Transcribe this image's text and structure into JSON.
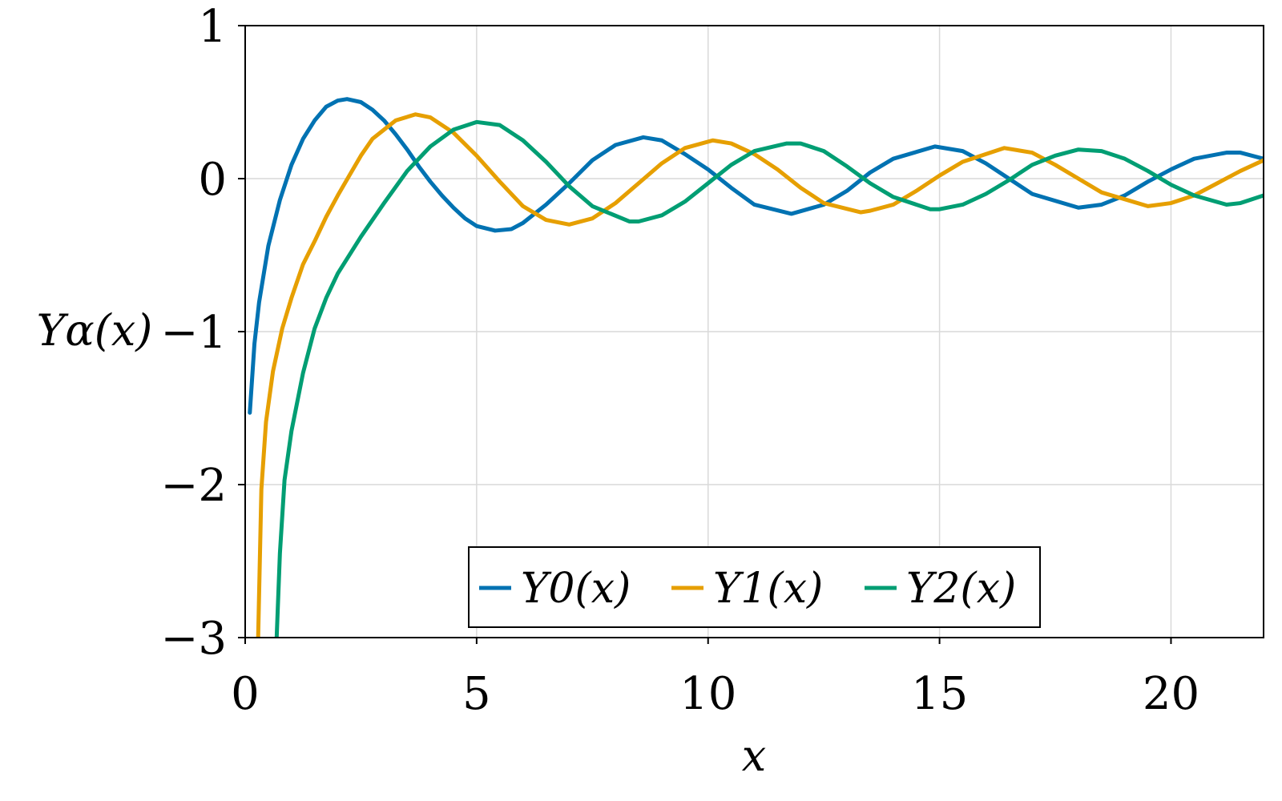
{
  "chart_data": {
    "type": "line",
    "title": "",
    "xlabel": "x",
    "ylabel": "Yα(x)",
    "xlim": [
      0,
      22
    ],
    "ylim": [
      -3,
      1
    ],
    "x_ticks": [
      0,
      5,
      10,
      15,
      20
    ],
    "y_ticks": [
      1,
      0,
      -1,
      -2,
      -3
    ],
    "x_tick_labels": [
      "0",
      "5",
      "10",
      "15",
      "20"
    ],
    "y_tick_labels": [
      "1",
      "0",
      "−1",
      "−2",
      "−3"
    ],
    "grid": true,
    "legend_position": "bottom-center",
    "series": [
      {
        "name": "Y0(x)",
        "color": "#0072B2",
        "points": [
          [
            0.1,
            -1.53
          ],
          [
            0.2,
            -1.08
          ],
          [
            0.3,
            -0.81
          ],
          [
            0.5,
            -0.44
          ],
          [
            0.75,
            -0.14
          ],
          [
            1.0,
            0.09
          ],
          [
            1.25,
            0.26
          ],
          [
            1.5,
            0.38
          ],
          [
            1.75,
            0.47
          ],
          [
            2.0,
            0.51
          ],
          [
            2.2,
            0.52
          ],
          [
            2.5,
            0.5
          ],
          [
            2.75,
            0.45
          ],
          [
            3.0,
            0.38
          ],
          [
            3.25,
            0.29
          ],
          [
            3.5,
            0.19
          ],
          [
            3.75,
            0.08
          ],
          [
            4.0,
            -0.02
          ],
          [
            4.25,
            -0.11
          ],
          [
            4.5,
            -0.19
          ],
          [
            4.75,
            -0.26
          ],
          [
            5.0,
            -0.31
          ],
          [
            5.4,
            -0.34
          ],
          [
            5.75,
            -0.33
          ],
          [
            6.0,
            -0.29
          ],
          [
            6.5,
            -0.17
          ],
          [
            7.0,
            -0.03
          ],
          [
            7.5,
            0.12
          ],
          [
            8.0,
            0.22
          ],
          [
            8.6,
            0.27
          ],
          [
            9.0,
            0.25
          ],
          [
            9.5,
            0.16
          ],
          [
            10.0,
            0.06
          ],
          [
            10.5,
            -0.06
          ],
          [
            11.0,
            -0.17
          ],
          [
            11.8,
            -0.23
          ],
          [
            12.5,
            -0.17
          ],
          [
            13.0,
            -0.08
          ],
          [
            13.5,
            0.04
          ],
          [
            14.0,
            0.13
          ],
          [
            14.9,
            0.21
          ],
          [
            15.5,
            0.18
          ],
          [
            16.0,
            0.1
          ],
          [
            16.5,
            0.0
          ],
          [
            17.0,
            -0.1
          ],
          [
            18.0,
            -0.19
          ],
          [
            18.5,
            -0.17
          ],
          [
            19.0,
            -0.11
          ],
          [
            19.5,
            -0.02
          ],
          [
            20.0,
            0.06
          ],
          [
            20.5,
            0.13
          ],
          [
            21.2,
            0.17
          ],
          [
            21.5,
            0.17
          ],
          [
            22.0,
            0.13
          ]
        ]
      },
      {
        "name": "Y1(x)",
        "color": "#E69F00",
        "points": [
          [
            0.28,
            -3.0
          ],
          [
            0.35,
            -2.03
          ],
          [
            0.45,
            -1.59
          ],
          [
            0.6,
            -1.26
          ],
          [
            0.8,
            -0.98
          ],
          [
            1.0,
            -0.78
          ],
          [
            1.25,
            -0.56
          ],
          [
            1.5,
            -0.41
          ],
          [
            1.75,
            -0.25
          ],
          [
            2.0,
            -0.11
          ],
          [
            2.25,
            0.02
          ],
          [
            2.5,
            0.15
          ],
          [
            2.75,
            0.26
          ],
          [
            3.0,
            0.32
          ],
          [
            3.25,
            0.38
          ],
          [
            3.68,
            0.42
          ],
          [
            4.0,
            0.4
          ],
          [
            4.5,
            0.3
          ],
          [
            5.0,
            0.15
          ],
          [
            5.5,
            -0.02
          ],
          [
            6.0,
            -0.18
          ],
          [
            6.5,
            -0.27
          ],
          [
            7.0,
            -0.3
          ],
          [
            7.5,
            -0.26
          ],
          [
            8.0,
            -0.16
          ],
          [
            8.5,
            -0.03
          ],
          [
            9.0,
            0.1
          ],
          [
            9.5,
            0.2
          ],
          [
            10.1,
            0.25
          ],
          [
            10.5,
            0.23
          ],
          [
            11.0,
            0.16
          ],
          [
            11.5,
            0.06
          ],
          [
            12.0,
            -0.06
          ],
          [
            12.5,
            -0.16
          ],
          [
            13.3,
            -0.22
          ],
          [
            13.5,
            -0.21
          ],
          [
            14.0,
            -0.17
          ],
          [
            14.5,
            -0.08
          ],
          [
            15.0,
            0.02
          ],
          [
            15.5,
            0.11
          ],
          [
            16.4,
            0.2
          ],
          [
            17.0,
            0.17
          ],
          [
            17.5,
            0.09
          ],
          [
            18.0,
            0.0
          ],
          [
            18.5,
            -0.09
          ],
          [
            19.5,
            -0.18
          ],
          [
            20.0,
            -0.16
          ],
          [
            20.5,
            -0.11
          ],
          [
            21.0,
            -0.03
          ],
          [
            21.5,
            0.05
          ],
          [
            22.0,
            0.12
          ]
        ]
      },
      {
        "name": "Y2(x)",
        "color": "#009E73",
        "points": [
          [
            0.68,
            -3.0
          ],
          [
            0.75,
            -2.45
          ],
          [
            0.85,
            -1.97
          ],
          [
            1.0,
            -1.65
          ],
          [
            1.25,
            -1.27
          ],
          [
            1.5,
            -0.98
          ],
          [
            1.75,
            -0.78
          ],
          [
            2.0,
            -0.62
          ],
          [
            2.5,
            -0.38
          ],
          [
            3.0,
            -0.16
          ],
          [
            3.5,
            0.05
          ],
          [
            4.0,
            0.21
          ],
          [
            4.5,
            0.32
          ],
          [
            5.0,
            0.37
          ],
          [
            5.5,
            0.35
          ],
          [
            6.0,
            0.25
          ],
          [
            6.5,
            0.11
          ],
          [
            7.0,
            -0.05
          ],
          [
            7.5,
            -0.18
          ],
          [
            8.3,
            -0.28
          ],
          [
            8.5,
            -0.28
          ],
          [
            9.0,
            -0.24
          ],
          [
            9.5,
            -0.15
          ],
          [
            10.0,
            -0.03
          ],
          [
            10.5,
            0.09
          ],
          [
            11.0,
            0.18
          ],
          [
            11.7,
            0.23
          ],
          [
            12.0,
            0.23
          ],
          [
            12.5,
            0.18
          ],
          [
            13.0,
            0.08
          ],
          [
            13.5,
            -0.03
          ],
          [
            14.0,
            -0.12
          ],
          [
            14.8,
            -0.2
          ],
          [
            15.0,
            -0.2
          ],
          [
            15.5,
            -0.17
          ],
          [
            16.0,
            -0.1
          ],
          [
            16.5,
            -0.01
          ],
          [
            17.0,
            0.09
          ],
          [
            17.5,
            0.15
          ],
          [
            18.0,
            0.19
          ],
          [
            18.5,
            0.18
          ],
          [
            19.0,
            0.13
          ],
          [
            19.5,
            0.05
          ],
          [
            20.0,
            -0.04
          ],
          [
            20.5,
            -0.11
          ],
          [
            21.2,
            -0.17
          ],
          [
            21.5,
            -0.16
          ],
          [
            22.0,
            -0.11
          ]
        ]
      }
    ]
  }
}
